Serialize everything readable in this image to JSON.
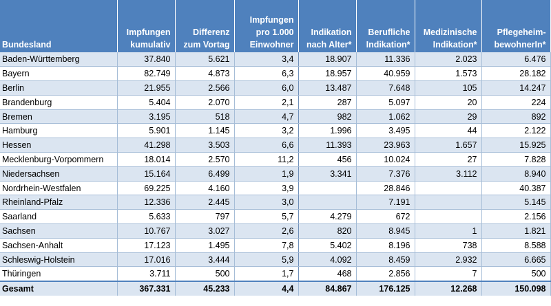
{
  "headers": [
    "Bundesland",
    "Impfungen\nkumulativ",
    "Differenz\nzum Vortag",
    "Impfungen\npro 1.000\nEinwohner",
    "Indikation\nnach Alter*",
    "Berufliche\nIndikation*",
    "Medizinische\nIndikation*",
    "Pflegeheim-\nbewohnerIn*"
  ],
  "rows": [
    [
      "Baden-Württemberg",
      "37.840",
      "5.621",
      "3,4",
      "18.907",
      "11.336",
      "2.023",
      "6.476"
    ],
    [
      "Bayern",
      "82.749",
      "4.873",
      "6,3",
      "18.957",
      "40.959",
      "1.573",
      "28.182"
    ],
    [
      "Berlin",
      "21.955",
      "2.566",
      "6,0",
      "13.487",
      "7.648",
      "105",
      "14.247"
    ],
    [
      "Brandenburg",
      "5.404",
      "2.070",
      "2,1",
      "287",
      "5.097",
      "20",
      "224"
    ],
    [
      "Bremen",
      "3.195",
      "518",
      "4,7",
      "982",
      "1.062",
      "29",
      "892"
    ],
    [
      "Hamburg",
      "5.901",
      "1.145",
      "3,2",
      "1.996",
      "3.495",
      "44",
      "2.122"
    ],
    [
      "Hessen",
      "41.298",
      "3.503",
      "6,6",
      "11.393",
      "23.963",
      "1.657",
      "15.925"
    ],
    [
      "Mecklenburg-Vorpommern",
      "18.014",
      "2.570",
      "11,2",
      "456",
      "10.024",
      "27",
      "7.828"
    ],
    [
      "Niedersachsen",
      "15.164",
      "6.499",
      "1,9",
      "3.341",
      "7.376",
      "3.112",
      "8.940"
    ],
    [
      "Nordrhein-Westfalen",
      "69.225",
      "4.160",
      "3,9",
      "",
      "28.846",
      "",
      "40.387"
    ],
    [
      "Rheinland-Pfalz",
      "12.336",
      "2.445",
      "3,0",
      "",
      "7.191",
      "",
      "5.145"
    ],
    [
      "Saarland",
      "5.633",
      "797",
      "5,7",
      "4.279",
      "672",
      "",
      "2.156"
    ],
    [
      "Sachsen",
      "10.767",
      "3.027",
      "2,6",
      "820",
      "8.945",
      "1",
      "1.821"
    ],
    [
      "Sachsen-Anhalt",
      "17.123",
      "1.495",
      "7,8",
      "5.402",
      "8.196",
      "738",
      "8.588"
    ],
    [
      "Schleswig-Holstein",
      "17.016",
      "3.444",
      "5,9",
      "4.092",
      "8.459",
      "2.932",
      "6.665"
    ],
    [
      "Thüringen",
      "3.711",
      "500",
      "1,7",
      "468",
      "2.856",
      "7",
      "500"
    ]
  ],
  "total": [
    "Gesamt",
    "367.331",
    "45.233",
    "4,4",
    "84.867",
    "176.125",
    "12.268",
    "150.098"
  ],
  "colors": {
    "header_bg": "#4f81bd",
    "band_bg": "#dbe5f1",
    "rule": "#a6bdd7"
  }
}
